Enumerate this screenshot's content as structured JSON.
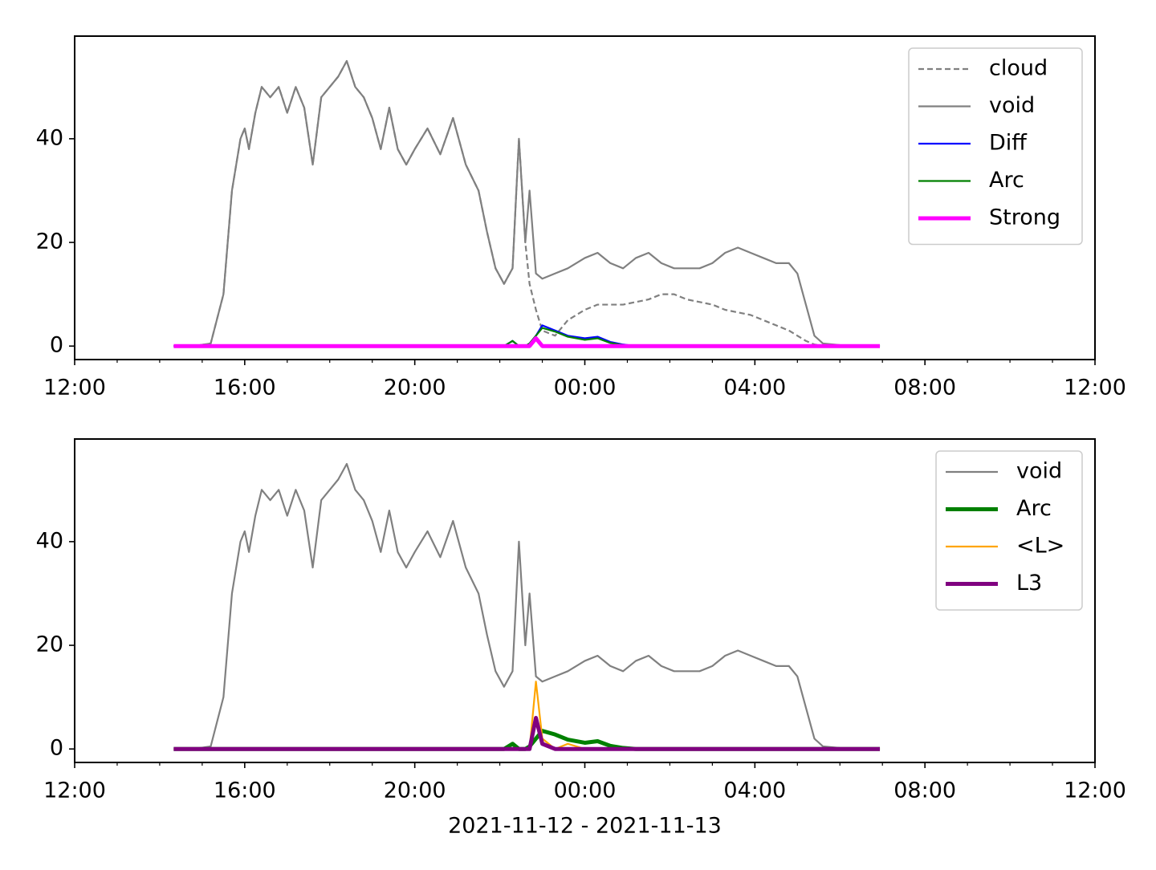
{
  "chart_data": [
    {
      "type": "line",
      "x": [
        14.33,
        14.8,
        15.2,
        15.5,
        15.7,
        15.9,
        16.0,
        16.1,
        16.25,
        16.4,
        16.6,
        16.8,
        17.0,
        17.2,
        17.4,
        17.6,
        17.8,
        18.0,
        18.2,
        18.4,
        18.6,
        18.8,
        19.0,
        19.2,
        19.4,
        19.6,
        19.8,
        20.0,
        20.3,
        20.6,
        20.9,
        21.2,
        21.5,
        21.7,
        21.9,
        22.1,
        22.3,
        22.45,
        22.6,
        22.7,
        22.85,
        23.0,
        23.3,
        23.6,
        24.0,
        24.3,
        24.6,
        24.9,
        25.2,
        25.5,
        25.8,
        26.1,
        26.4,
        26.7,
        27.0,
        27.3,
        27.6,
        27.9,
        28.2,
        28.5,
        28.8,
        29.0,
        29.2,
        29.4,
        29.6,
        30.0,
        30.5,
        30.94
      ],
      "xlim": [
        12,
        36
      ],
      "xticks": [
        {
          "value": 12,
          "label": "12:00"
        },
        {
          "value": 16,
          "label": "16:00"
        },
        {
          "value": 20,
          "label": "20:00"
        },
        {
          "value": 24,
          "label": "00:00"
        },
        {
          "value": 28,
          "label": "04:00"
        },
        {
          "value": 32,
          "label": "08:00"
        },
        {
          "value": 36,
          "label": "12:00"
        }
      ],
      "ylim": [
        -2.6,
        59.8
      ],
      "yticks": [
        0,
        20,
        40
      ],
      "legend": "upper right",
      "series": [
        {
          "name": "cloud",
          "color": "#808080",
          "style": "dashed",
          "width": "thin",
          "values": [
            0,
            0,
            0.5,
            10,
            30,
            40,
            42,
            38,
            45,
            50,
            48,
            50,
            45,
            50,
            46,
            35,
            48,
            50,
            52,
            55,
            50,
            48,
            44,
            38,
            46,
            38,
            35,
            38,
            42,
            37,
            44,
            35,
            30,
            22,
            15,
            12,
            15,
            40,
            20,
            12,
            7,
            3,
            2,
            5,
            7,
            8,
            8,
            8,
            8.5,
            9,
            10,
            10,
            9,
            8.5,
            8,
            7,
            6.5,
            6,
            5,
            4,
            3,
            2,
            1,
            0.3,
            0.1,
            0,
            0,
            0
          ]
        },
        {
          "name": "void",
          "color": "#808080",
          "style": "solid",
          "width": "thin",
          "values": [
            0,
            0,
            0.5,
            10,
            30,
            40,
            42,
            38,
            45,
            50,
            48,
            50,
            45,
            50,
            46,
            35,
            48,
            50,
            52,
            55,
            50,
            48,
            44,
            38,
            46,
            38,
            35,
            38,
            42,
            37,
            44,
            35,
            30,
            22,
            15,
            12,
            15,
            40,
            20,
            30,
            14,
            13,
            14,
            15,
            17,
            18,
            16,
            15,
            17,
            18,
            16,
            15,
            15,
            15,
            16,
            18,
            19,
            18,
            17,
            16,
            16,
            14,
            8,
            2,
            0.5,
            0.2,
            0.1,
            0.1
          ]
        },
        {
          "name": "Diff",
          "color": "#0000ff",
          "style": "solid",
          "width": "thin",
          "values": [
            0,
            0,
            0,
            0,
            0,
            0,
            0,
            0,
            0,
            0,
            0,
            0,
            0,
            0,
            0,
            0,
            0,
            0,
            0,
            0,
            0,
            0,
            0,
            0,
            0,
            0,
            0,
            0,
            0,
            0,
            0,
            0,
            0,
            0,
            0,
            0,
            1,
            0,
            0,
            0.5,
            2,
            4,
            3,
            2,
            1.5,
            1.8,
            0.8,
            0.3,
            0,
            0,
            0,
            0,
            0,
            0,
            0,
            0,
            0,
            0,
            0,
            0,
            0,
            0,
            0,
            0,
            0,
            0,
            0,
            0
          ]
        },
        {
          "name": "Arc",
          "color": "#008000",
          "style": "solid",
          "width": "thin",
          "values": [
            0,
            0,
            0,
            0,
            0,
            0,
            0,
            0,
            0,
            0,
            0,
            0,
            0,
            0,
            0,
            0,
            0,
            0,
            0,
            0,
            0,
            0,
            0,
            0,
            0,
            0,
            0,
            0,
            0,
            0,
            0,
            0,
            0,
            0,
            0,
            0,
            1,
            0,
            0,
            0.5,
            2,
            3.5,
            2.8,
            1.8,
            1.2,
            1.5,
            0.6,
            0.2,
            0,
            0,
            0,
            0,
            0,
            0,
            0,
            0,
            0,
            0,
            0,
            0,
            0,
            0,
            0,
            0,
            0,
            0,
            0,
            0
          ]
        },
        {
          "name": "Strong",
          "color": "#ff00ff",
          "style": "solid",
          "width": "thick",
          "values": [
            0,
            0,
            0,
            0,
            0,
            0,
            0,
            0,
            0,
            0,
            0,
            0,
            0,
            0,
            0,
            0,
            0,
            0,
            0,
            0,
            0,
            0,
            0,
            0,
            0,
            0,
            0,
            0,
            0,
            0,
            0,
            0,
            0,
            0,
            0,
            0,
            0,
            0,
            0,
            0,
            1.5,
            0,
            0,
            0,
            0,
            0,
            0,
            0,
            0,
            0,
            0,
            0,
            0,
            0,
            0,
            0,
            0,
            0,
            0,
            0,
            0,
            0,
            0,
            0,
            0,
            0,
            0,
            0
          ]
        }
      ]
    },
    {
      "type": "line",
      "x": [
        14.33,
        14.8,
        15.2,
        15.5,
        15.7,
        15.9,
        16.0,
        16.1,
        16.25,
        16.4,
        16.6,
        16.8,
        17.0,
        17.2,
        17.4,
        17.6,
        17.8,
        18.0,
        18.2,
        18.4,
        18.6,
        18.8,
        19.0,
        19.2,
        19.4,
        19.6,
        19.8,
        20.0,
        20.3,
        20.6,
        20.9,
        21.2,
        21.5,
        21.7,
        21.9,
        22.1,
        22.3,
        22.45,
        22.6,
        22.7,
        22.85,
        23.0,
        23.3,
        23.6,
        24.0,
        24.3,
        24.6,
        24.9,
        25.2,
        25.5,
        25.8,
        26.1,
        26.4,
        26.7,
        27.0,
        27.3,
        27.6,
        27.9,
        28.2,
        28.5,
        28.8,
        29.0,
        29.2,
        29.4,
        29.6,
        30.0,
        30.5,
        30.94
      ],
      "xlim": [
        12,
        36
      ],
      "xticks": [
        {
          "value": 12,
          "label": "12:00"
        },
        {
          "value": 16,
          "label": "16:00"
        },
        {
          "value": 20,
          "label": "20:00"
        },
        {
          "value": 24,
          "label": "00:00"
        },
        {
          "value": 28,
          "label": "04:00"
        },
        {
          "value": 32,
          "label": "08:00"
        },
        {
          "value": 36,
          "label": "12:00"
        }
      ],
      "xlabel": "2021-11-12 - 2021-11-13",
      "ylim": [
        -2.6,
        59.8
      ],
      "yticks": [
        0,
        20,
        40
      ],
      "legend": "upper right",
      "series": [
        {
          "name": "void",
          "color": "#808080",
          "style": "solid",
          "width": "thin",
          "values": [
            0,
            0,
            0.5,
            10,
            30,
            40,
            42,
            38,
            45,
            50,
            48,
            50,
            45,
            50,
            46,
            35,
            48,
            50,
            52,
            55,
            50,
            48,
            44,
            38,
            46,
            38,
            35,
            38,
            42,
            37,
            44,
            35,
            30,
            22,
            15,
            12,
            15,
            40,
            20,
            30,
            14,
            13,
            14,
            15,
            17,
            18,
            16,
            15,
            17,
            18,
            16,
            15,
            15,
            15,
            16,
            18,
            19,
            18,
            17,
            16,
            16,
            14,
            8,
            2,
            0.5,
            0.2,
            0.1,
            0.1
          ]
        },
        {
          "name": "Arc",
          "color": "#008000",
          "style": "solid",
          "width": "thick",
          "values": [
            0,
            0,
            0,
            0,
            0,
            0,
            0,
            0,
            0,
            0,
            0,
            0,
            0,
            0,
            0,
            0,
            0,
            0,
            0,
            0,
            0,
            0,
            0,
            0,
            0,
            0,
            0,
            0,
            0,
            0,
            0,
            0,
            0,
            0,
            0,
            0,
            1,
            0,
            0,
            0.5,
            2,
            3.5,
            2.8,
            1.8,
            1.2,
            1.5,
            0.6,
            0.2,
            0,
            0,
            0,
            0,
            0,
            0,
            0,
            0,
            0,
            0,
            0,
            0,
            0,
            0,
            0,
            0,
            0,
            0,
            0,
            0
          ]
        },
        {
          "name": "<L>",
          "color": "#ffa500",
          "style": "solid",
          "width": "thin",
          "values": [
            0,
            0,
            0,
            0,
            0,
            0,
            0,
            0,
            0,
            0,
            0,
            0,
            0,
            0,
            0,
            0,
            0,
            0,
            0,
            0,
            0,
            0,
            0,
            0,
            0,
            0,
            0,
            0,
            0,
            0,
            0,
            0,
            0,
            0,
            0,
            0,
            0,
            0,
            0,
            0,
            13,
            2,
            0,
            1,
            0,
            0,
            0,
            0,
            0,
            0,
            0,
            0,
            0,
            0,
            0,
            0,
            0,
            0,
            0,
            0,
            0,
            0,
            0,
            0,
            0,
            0,
            0,
            0
          ]
        },
        {
          "name": "L3",
          "color": "#800080",
          "style": "solid",
          "width": "thick",
          "values": [
            0,
            0,
            0,
            0,
            0,
            0,
            0,
            0,
            0,
            0,
            0,
            0,
            0,
            0,
            0,
            0,
            0,
            0,
            0,
            0,
            0,
            0,
            0,
            0,
            0,
            0,
            0,
            0,
            0,
            0,
            0,
            0,
            0,
            0,
            0,
            0,
            0,
            0,
            0,
            0,
            6,
            1,
            0,
            0,
            0,
            0,
            0,
            0,
            0,
            0,
            0,
            0,
            0,
            0,
            0,
            0,
            0,
            0,
            0,
            0,
            0,
            0,
            0,
            0,
            0,
            0,
            0,
            0
          ]
        }
      ]
    }
  ]
}
